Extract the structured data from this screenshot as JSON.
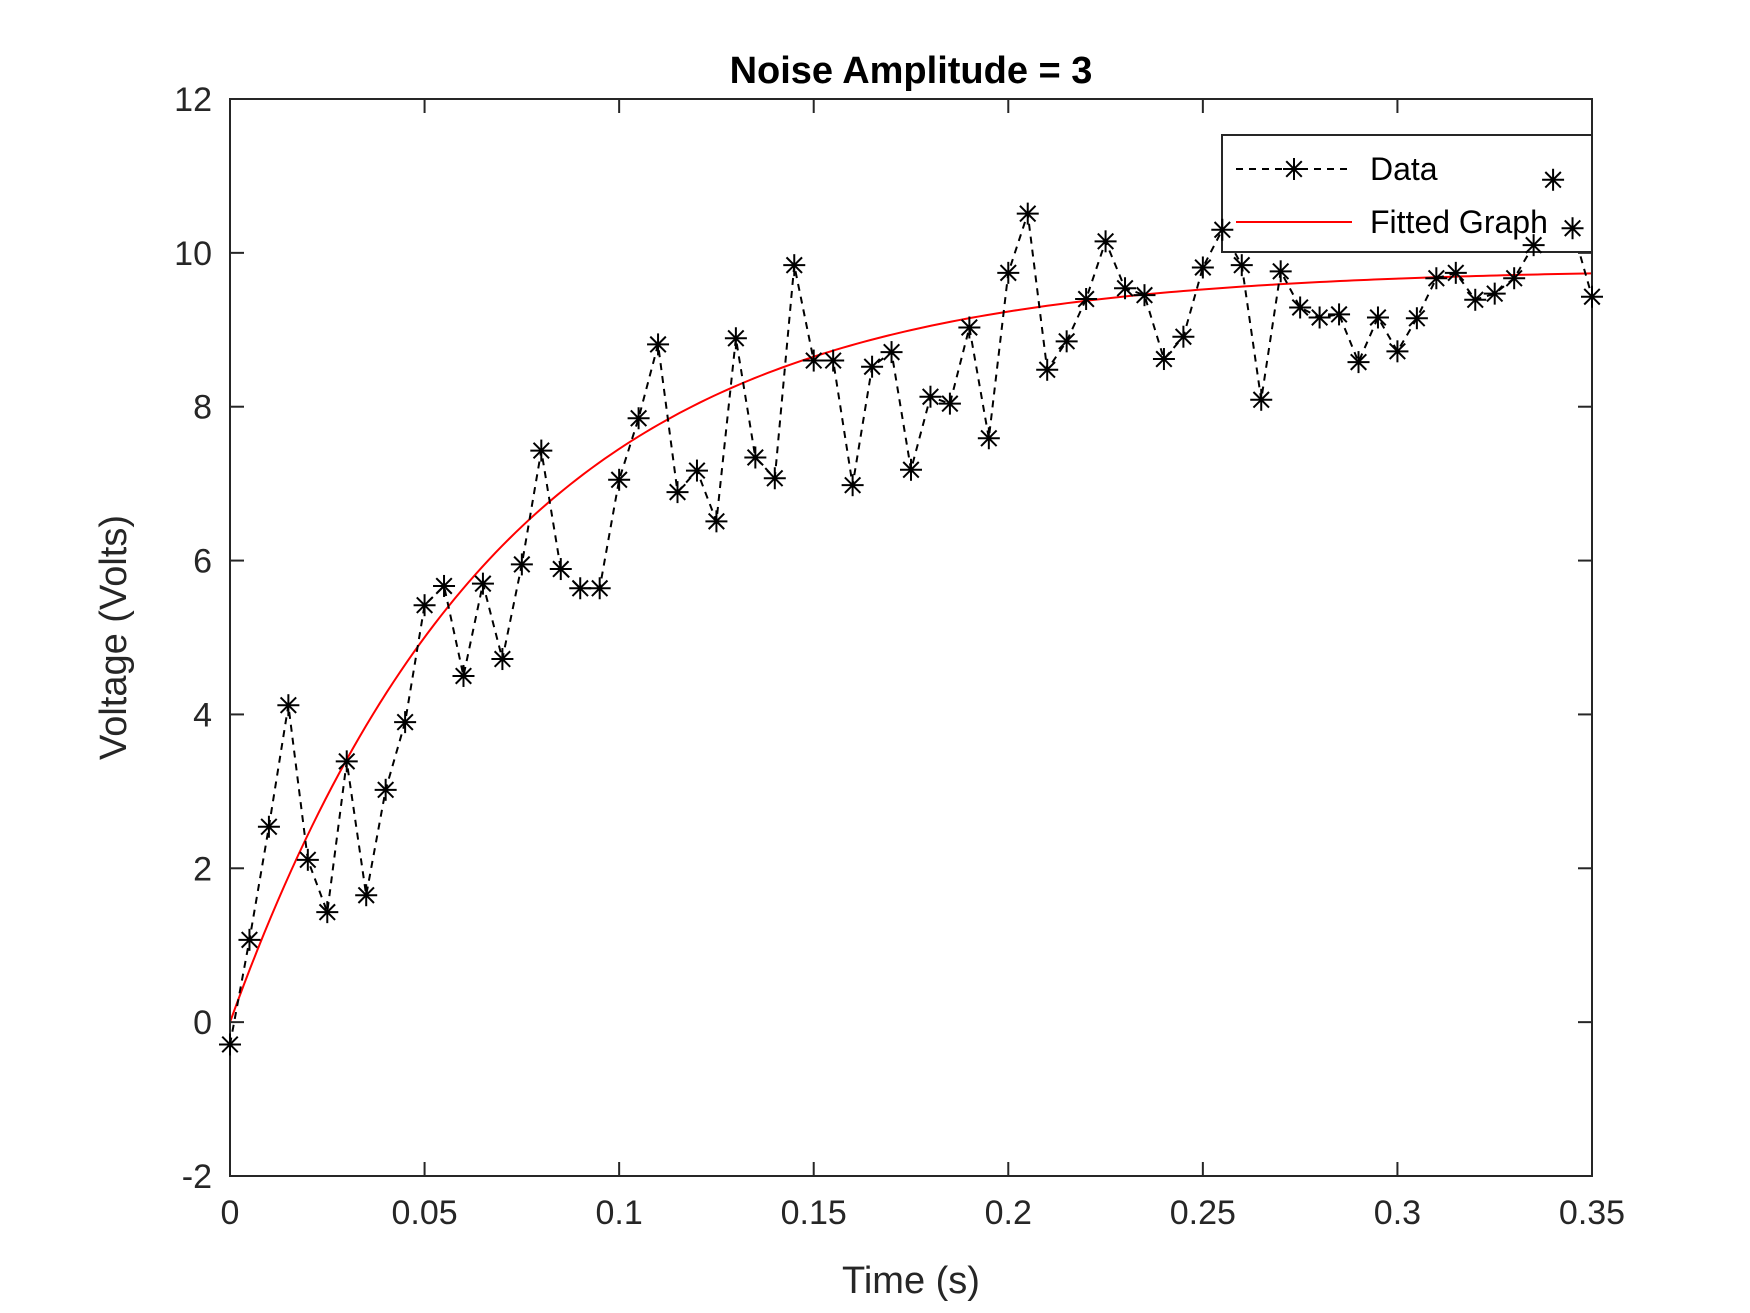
{
  "chart_data": {
    "type": "line",
    "title": "Noise Amplitude = 3",
    "xlabel": "Time (s)",
    "ylabel": "Voltage (Volts)",
    "xlim": [
      0,
      0.35
    ],
    "ylim": [
      -2,
      12
    ],
    "xticks": [
      0,
      0.05,
      0.1,
      0.15,
      0.2,
      0.25,
      0.3,
      0.35
    ],
    "xtick_labels": [
      "0",
      "0.05",
      "0.1",
      "0.15",
      "0.2",
      "0.25",
      "0.3",
      "0.35"
    ],
    "yticks": [
      -2,
      0,
      2,
      4,
      6,
      8,
      10,
      12
    ],
    "ytick_labels": [
      "-2",
      "0",
      "2",
      "4",
      "6",
      "8",
      "10",
      "12"
    ],
    "grid": false,
    "legend_position": "top-right",
    "series": [
      {
        "name": "Data",
        "style": "dashed-with-asterisk-markers",
        "color": "#000000",
        "x": [
          0,
          0.005,
          0.01,
          0.015,
          0.02,
          0.025,
          0.03,
          0.035,
          0.04,
          0.045,
          0.05,
          0.055,
          0.06,
          0.065,
          0.07,
          0.075,
          0.08,
          0.085,
          0.09,
          0.095,
          0.1,
          0.105,
          0.11,
          0.115,
          0.12,
          0.125,
          0.13,
          0.135,
          0.14,
          0.145,
          0.15,
          0.155,
          0.16,
          0.165,
          0.17,
          0.175,
          0.18,
          0.185,
          0.19,
          0.195,
          0.2,
          0.205,
          0.21,
          0.215,
          0.22,
          0.225,
          0.23,
          0.235,
          0.24,
          0.245,
          0.25,
          0.255,
          0.26,
          0.265,
          0.27,
          0.275,
          0.28,
          0.285,
          0.29,
          0.295,
          0.3,
          0.305,
          0.31,
          0.315,
          0.32,
          0.325,
          0.33,
          0.335,
          0.34,
          0.345,
          0.35
        ],
        "y": [
          -0.29,
          1.07,
          2.54,
          4.12,
          2.11,
          1.43,
          3.39,
          1.65,
          3.02,
          3.9,
          5.42,
          5.67,
          4.5,
          5.7,
          4.72,
          5.95,
          7.43,
          5.89,
          5.64,
          5.64,
          7.05,
          7.85,
          8.81,
          6.89,
          7.17,
          6.51,
          8.89,
          7.34,
          7.07,
          9.84,
          8.6,
          8.6,
          6.98,
          8.52,
          8.71,
          7.18,
          8.13,
          8.04,
          9.03,
          7.59,
          9.74,
          10.51,
          8.48,
          8.85,
          9.4,
          10.15,
          9.54,
          9.45,
          8.62,
          8.91,
          9.81,
          10.3,
          9.84,
          8.09,
          9.76,
          9.29,
          9.16,
          9.2,
          8.58,
          9.16,
          8.72,
          9.15,
          9.67,
          9.74,
          9.39,
          9.47,
          9.67,
          10.1,
          10.95,
          10.32,
          9.43
        ]
      },
      {
        "name": "Fitted Graph",
        "style": "solid",
        "color": "#ff0000",
        "model": "exponential-rise",
        "amplitude": 9.8,
        "time_constant": 0.07
      }
    ]
  }
}
